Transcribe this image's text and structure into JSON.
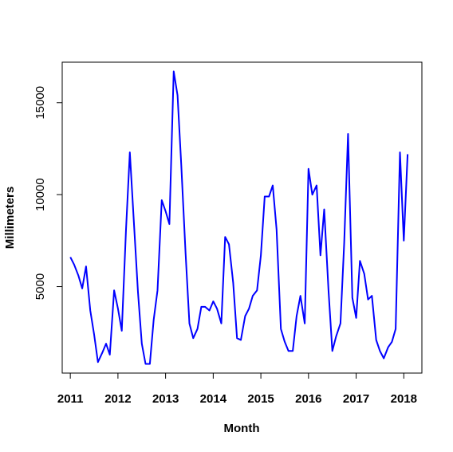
{
  "chart_data": {
    "type": "line",
    "title": "",
    "xlabel": "Month",
    "ylabel": "Millimeters",
    "xlim": [
      2010.83,
      2018.38
    ],
    "ylim": [
      300,
      17200
    ],
    "x_ticks": [
      2011,
      2012,
      2013,
      2014,
      2015,
      2016,
      2017,
      2018
    ],
    "x_tick_labels": [
      "2011",
      "2012",
      "2013",
      "2014",
      "2015",
      "2016",
      "2017",
      "2018"
    ],
    "y_ticks": [
      5000,
      10000,
      15000
    ],
    "y_tick_labels": [
      "5000",
      "10000",
      "15000"
    ],
    "grid": false,
    "legend": "none",
    "series": [
      {
        "color": "#0000ff",
        "x": [
          2011.0,
          2011.08,
          2011.17,
          2011.25,
          2011.33,
          2011.42,
          2011.5,
          2011.58,
          2011.67,
          2011.75,
          2011.83,
          2011.92,
          2012.0,
          2012.08,
          2012.17,
          2012.25,
          2012.33,
          2012.42,
          2012.5,
          2012.58,
          2012.67,
          2012.75,
          2012.83,
          2012.92,
          2013.0,
          2013.08,
          2013.17,
          2013.25,
          2013.33,
          2013.42,
          2013.5,
          2013.58,
          2013.67,
          2013.75,
          2013.83,
          2013.92,
          2014.0,
          2014.08,
          2014.17,
          2014.25,
          2014.33,
          2014.42,
          2014.5,
          2014.58,
          2014.67,
          2014.75,
          2014.83,
          2014.92,
          2015.0,
          2015.08,
          2015.17,
          2015.25,
          2015.33,
          2015.42,
          2015.5,
          2015.58,
          2015.67,
          2015.75,
          2015.83,
          2015.92,
          2016.0,
          2016.08,
          2016.17,
          2016.25,
          2016.33,
          2016.42,
          2016.5,
          2016.58,
          2016.67,
          2016.75,
          2016.83,
          2016.92,
          2017.0,
          2017.08,
          2017.17,
          2017.25,
          2017.33,
          2017.42,
          2017.5,
          2017.58,
          2017.67,
          2017.75,
          2017.83,
          2017.92,
          2018.0,
          2018.08
        ],
        "y": [
          6600,
          6200,
          5600,
          4900,
          6100,
          3700,
          2400,
          900,
          1400,
          1900,
          1300,
          4800,
          3800,
          2600,
          8100,
          12300,
          8700,
          4700,
          1900,
          800,
          800,
          3200,
          4800,
          9700,
          9100,
          8400,
          16700,
          15400,
          11600,
          6800,
          3000,
          2200,
          2700,
          3900,
          3900,
          3700,
          4200,
          3800,
          3000,
          7700,
          7300,
          5200,
          2200,
          2100,
          3400,
          3800,
          4500,
          4800,
          6700,
          9900,
          9900,
          10500,
          8100,
          2700,
          2000,
          1500,
          1500,
          3400,
          4500,
          3000,
          11400,
          10000,
          10500,
          6700,
          9200,
          4800,
          1500,
          2300,
          3000,
          7400,
          13300,
          4400,
          3300,
          6400,
          5700,
          4300,
          4500,
          2100,
          1500,
          1100,
          1700,
          2000,
          2700,
          12300,
          7500,
          12200
        ]
      }
    ]
  }
}
